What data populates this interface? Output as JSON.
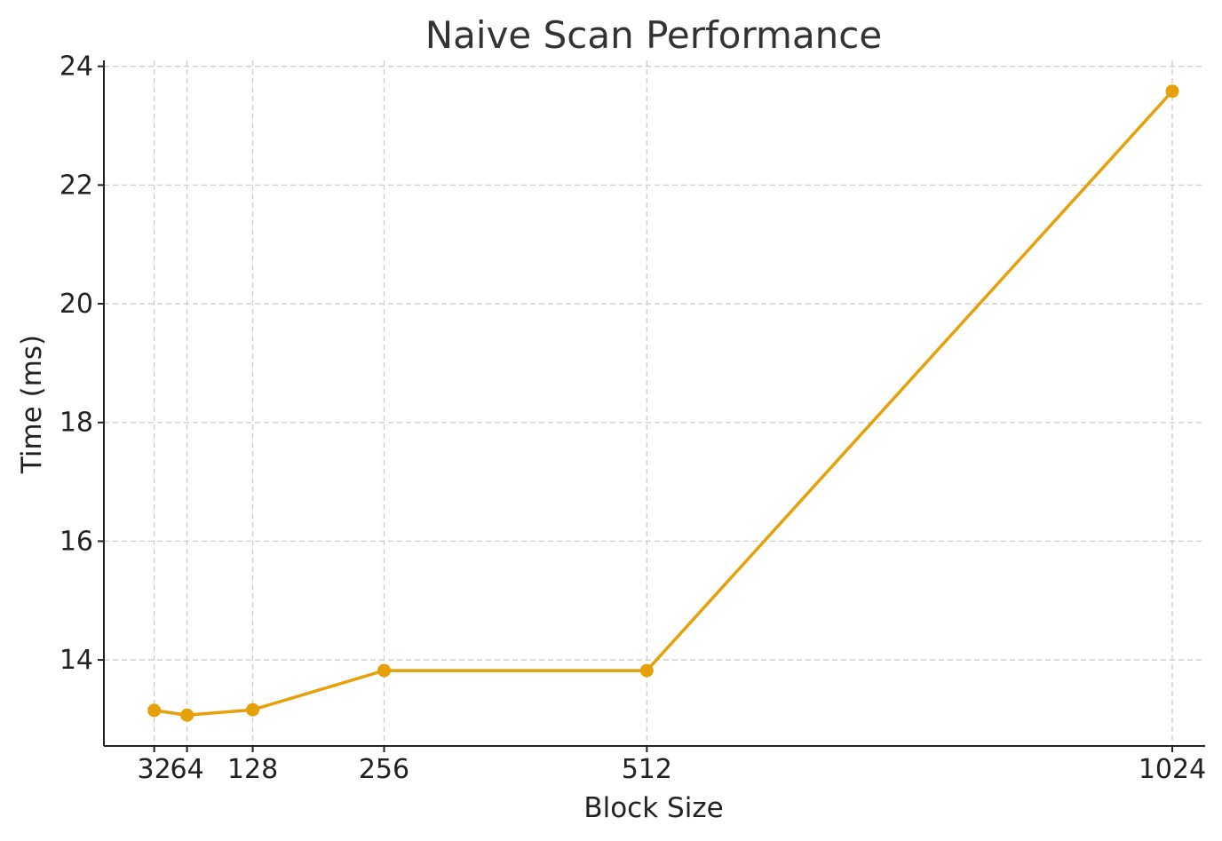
{
  "chart_data": {
    "type": "line",
    "title": "Naive Scan Performance",
    "xlabel": "Block Size",
    "ylabel": "Time (ms)",
    "x_ticks": [
      "32",
      "64",
      "128",
      "256",
      "512",
      "1024"
    ],
    "y_ticks": [
      "14",
      "16",
      "18",
      "20",
      "22",
      "24"
    ],
    "xlim": [
      -17,
      1056
    ],
    "ylim": [
      12.55,
      24.1
    ],
    "grid": true,
    "series": [
      {
        "color": "#E6A00A",
        "marker": "circle",
        "x": [
          32,
          64,
          128,
          256,
          512,
          1024
        ],
        "y": [
          13.15,
          13.07,
          13.16,
          13.82,
          13.82,
          23.58
        ]
      }
    ]
  }
}
